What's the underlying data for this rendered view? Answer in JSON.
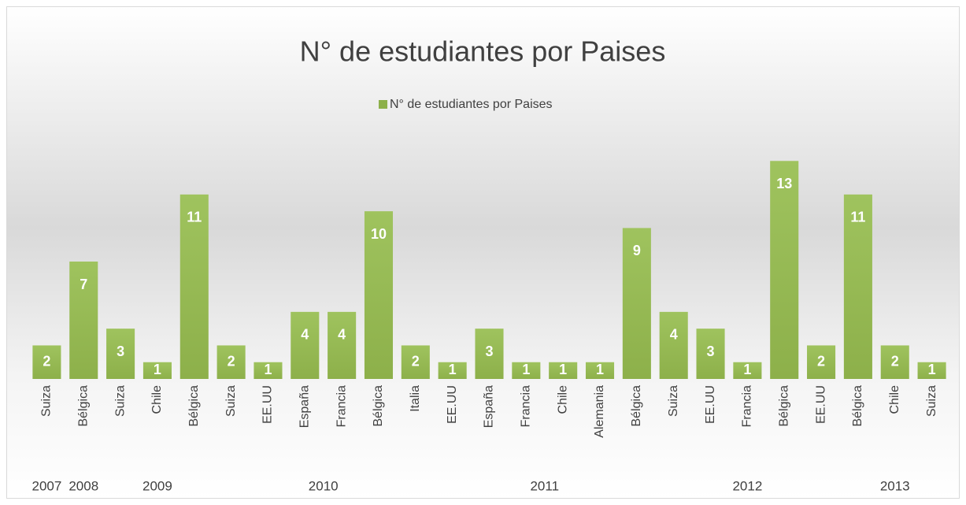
{
  "chart_data": {
    "type": "bar",
    "title": "N° de estudiantes por Paises",
    "legend": "top",
    "series": [
      {
        "name": "N° de estudiantes por Paises",
        "color": "#8db04a",
        "values": [
          2,
          7,
          3,
          1,
          11,
          2,
          1,
          4,
          4,
          10,
          2,
          1,
          3,
          1,
          1,
          1,
          9,
          4,
          3,
          1,
          13,
          2,
          11,
          2,
          1
        ]
      }
    ],
    "categories": [
      "Suiza",
      "Bélgica",
      "Suiza",
      "Chile",
      "Bélgica",
      "Suiza",
      "EE.UU",
      "España",
      "Francia",
      "Bélgica",
      "Italia",
      "EE.UU",
      "España",
      "Francia",
      "Chile",
      "Alemania",
      "Bélgica",
      "Suiza",
      "EE.UU",
      "Francia",
      "Bélgica",
      "EE.UU",
      "Bélgica",
      "Chile",
      "Suiza"
    ],
    "groups": [
      {
        "label": "2007",
        "count": 1
      },
      {
        "label": "2008",
        "count": 1
      },
      {
        "label": "2009",
        "count": 3
      },
      {
        "label": "2010",
        "count": 6
      },
      {
        "label": "2011",
        "count": 6
      },
      {
        "label": "2012",
        "count": 5
      },
      {
        "label": "2013",
        "count": 3
      }
    ],
    "ylim": [
      0,
      14
    ]
  }
}
